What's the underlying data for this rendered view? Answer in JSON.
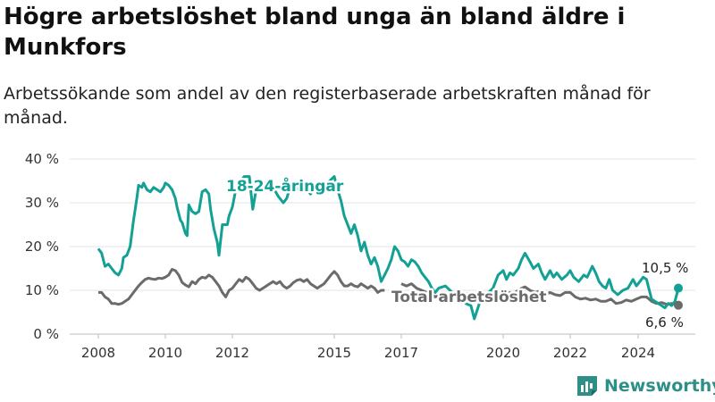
{
  "title": "Högre arbetslöshet bland unga än bland äldre i Munkfors",
  "subtitle": "Arbetssökande som andel av den registerbaserade arbetskraften månad för månad.",
  "brand": {
    "name": "Newsworthy",
    "icon": "newsworthy-logo-icon",
    "color": "#2e8f86"
  },
  "chart_data": {
    "type": "line",
    "title": "Högre arbetslöshet bland unga än bland äldre i Munkfors",
    "subtitle": "Arbetssökande som andel av den registerbaserade arbetskraften månad för månad.",
    "xlabel": "",
    "ylabel": "",
    "xlim": [
      2008,
      2025
    ],
    "ylim": [
      0,
      40
    ],
    "xticks": [
      2008,
      2010,
      2012,
      2015,
      2017,
      2020,
      2022,
      2024
    ],
    "yticks": [
      0,
      10,
      20,
      30,
      40
    ],
    "ytick_labels": [
      "0 %",
      "10 %",
      "20 %",
      "30 %",
      "40 %"
    ],
    "grid": "horizontal",
    "series": [
      {
        "name": "18-24-åringar",
        "color": "#12a194",
        "end_label": "10,5 %",
        "points": [
          [
            2008.0,
            19.5
          ],
          [
            2008.1,
            18.5
          ],
          [
            2008.2,
            15.5
          ],
          [
            2008.3,
            16.0
          ],
          [
            2008.4,
            15.0
          ],
          [
            2008.5,
            14.0
          ],
          [
            2008.6,
            13.5
          ],
          [
            2008.7,
            15.0
          ],
          [
            2008.75,
            17.5
          ],
          [
            2008.85,
            18.0
          ],
          [
            2008.95,
            20.0
          ],
          [
            2009.05,
            26.0
          ],
          [
            2009.15,
            31.0
          ],
          [
            2009.2,
            34.0
          ],
          [
            2009.3,
            33.5
          ],
          [
            2009.35,
            34.5
          ],
          [
            2009.45,
            33.0
          ],
          [
            2009.55,
            32.5
          ],
          [
            2009.65,
            33.5
          ],
          [
            2009.75,
            33.0
          ],
          [
            2009.85,
            32.5
          ],
          [
            2009.95,
            33.5
          ],
          [
            2010.0,
            34.5
          ],
          [
            2010.1,
            34.0
          ],
          [
            2010.2,
            33.0
          ],
          [
            2010.3,
            31.0
          ],
          [
            2010.35,
            29.0
          ],
          [
            2010.45,
            26.0
          ],
          [
            2010.5,
            25.5
          ],
          [
            2010.6,
            23.0
          ],
          [
            2010.65,
            22.5
          ],
          [
            2010.7,
            29.5
          ],
          [
            2010.8,
            28.0
          ],
          [
            2010.9,
            27.5
          ],
          [
            2011.0,
            28.0
          ],
          [
            2011.1,
            32.5
          ],
          [
            2011.2,
            33.0
          ],
          [
            2011.3,
            32.0
          ],
          [
            2011.35,
            28.5
          ],
          [
            2011.45,
            24.0
          ],
          [
            2011.55,
            21.0
          ],
          [
            2011.6,
            18.0
          ],
          [
            2011.7,
            25.0
          ],
          [
            2011.85,
            25.0
          ],
          [
            2011.9,
            27.0
          ],
          [
            2012.0,
            29.0
          ],
          [
            2012.05,
            31.0
          ],
          [
            2012.1,
            33.0
          ],
          [
            2012.2,
            34.5
          ],
          [
            2012.35,
            36.0
          ],
          [
            2012.5,
            36.0
          ],
          [
            2012.6,
            28.5
          ],
          [
            2012.7,
            33.0
          ],
          [
            2012.85,
            34.0
          ],
          [
            2012.95,
            34.5
          ],
          [
            2013.1,
            34.0
          ],
          [
            2013.2,
            33.5
          ],
          [
            2013.35,
            31.5
          ],
          [
            2013.5,
            30.0
          ],
          [
            2013.6,
            31.0
          ],
          [
            2013.7,
            33.5
          ],
          [
            2013.85,
            34.0
          ],
          [
            2013.95,
            33.0
          ],
          [
            2014.05,
            33.5
          ],
          [
            2014.2,
            33.0
          ],
          [
            2014.3,
            32.0
          ],
          [
            2014.45,
            34.0
          ],
          [
            2014.6,
            33.5
          ],
          [
            2014.8,
            34.5
          ],
          [
            2015.0,
            36.0
          ],
          [
            2015.1,
            33.0
          ],
          [
            2015.2,
            30.5
          ],
          [
            2015.3,
            27.0
          ],
          [
            2015.4,
            25.0
          ],
          [
            2015.5,
            23.0
          ],
          [
            2015.6,
            25.0
          ],
          [
            2015.7,
            22.5
          ],
          [
            2015.8,
            19.0
          ],
          [
            2015.9,
            21.0
          ],
          [
            2016.0,
            18.0
          ],
          [
            2016.1,
            16.0
          ],
          [
            2016.2,
            17.5
          ],
          [
            2016.3,
            15.5
          ],
          [
            2016.4,
            12.0
          ],
          [
            2016.5,
            13.5
          ],
          [
            2016.6,
            15.0
          ],
          [
            2016.7,
            17.0
          ],
          [
            2016.8,
            20.0
          ],
          [
            2016.9,
            19.0
          ],
          [
            2017.0,
            17.0
          ],
          [
            2017.1,
            16.5
          ],
          [
            2017.2,
            15.5
          ],
          [
            2017.3,
            17.0
          ],
          [
            2017.4,
            16.5
          ],
          [
            2017.5,
            15.5
          ],
          [
            2017.6,
            14.0
          ],
          [
            2017.7,
            13.0
          ],
          [
            2017.8,
            12.0
          ],
          [
            2017.9,
            10.5
          ],
          [
            2018.0,
            9.5
          ],
          [
            2018.1,
            10.5
          ],
          [
            2018.3,
            11.0
          ],
          [
            2018.5,
            9.5
          ],
          [
            2018.7,
            8.5
          ],
          [
            2018.9,
            7.0
          ],
          [
            2019.05,
            6.5
          ],
          [
            2019.15,
            3.5
          ],
          [
            2019.3,
            7.0
          ],
          [
            2019.5,
            9.0
          ],
          [
            2019.7,
            10.5
          ],
          [
            2019.85,
            13.5
          ],
          [
            2020.0,
            14.5
          ],
          [
            2020.1,
            12.5
          ],
          [
            2020.2,
            14.0
          ],
          [
            2020.3,
            13.5
          ],
          [
            2020.45,
            15.0
          ],
          [
            2020.55,
            17.0
          ],
          [
            2020.65,
            18.5
          ],
          [
            2020.8,
            16.5
          ],
          [
            2020.9,
            15.0
          ],
          [
            2021.05,
            16.0
          ],
          [
            2021.15,
            14.0
          ],
          [
            2021.25,
            12.5
          ],
          [
            2021.4,
            14.5
          ],
          [
            2021.5,
            13.0
          ],
          [
            2021.6,
            14.0
          ],
          [
            2021.75,
            12.5
          ],
          [
            2021.9,
            13.5
          ],
          [
            2022.0,
            14.5
          ],
          [
            2022.1,
            13.0
          ],
          [
            2022.25,
            12.0
          ],
          [
            2022.4,
            13.5
          ],
          [
            2022.5,
            13.0
          ],
          [
            2022.65,
            15.5
          ],
          [
            2022.75,
            14.0
          ],
          [
            2022.85,
            12.0
          ],
          [
            2022.95,
            11.0
          ],
          [
            2023.05,
            10.5
          ],
          [
            2023.15,
            12.5
          ],
          [
            2023.25,
            10.0
          ],
          [
            2023.4,
            9.0
          ],
          [
            2023.55,
            10.0
          ],
          [
            2023.7,
            10.5
          ],
          [
            2023.85,
            12.5
          ],
          [
            2023.95,
            11.0
          ],
          [
            2024.05,
            12.0
          ],
          [
            2024.15,
            13.0
          ],
          [
            2024.25,
            12.5
          ],
          [
            2024.4,
            8.0
          ],
          [
            2024.5,
            7.5
          ],
          [
            2024.6,
            7.0
          ],
          [
            2024.7,
            6.5
          ],
          [
            2024.8,
            6.0
          ],
          [
            2024.9,
            7.0
          ],
          [
            2025.0,
            6.5
          ],
          [
            2025.1,
            7.5
          ],
          [
            2025.2,
            10.5
          ]
        ]
      },
      {
        "name": "Total arbetslöshet",
        "color": "#6b6b6b",
        "end_label": "6,6 %",
        "points": [
          [
            2008.0,
            9.5
          ],
          [
            2008.1,
            9.5
          ],
          [
            2008.2,
            8.5
          ],
          [
            2008.3,
            8.0
          ],
          [
            2008.4,
            7.0
          ],
          [
            2008.5,
            7.0
          ],
          [
            2008.6,
            6.8
          ],
          [
            2008.7,
            7.0
          ],
          [
            2008.8,
            7.5
          ],
          [
            2008.9,
            8.0
          ],
          [
            2009.0,
            9.0
          ],
          [
            2009.1,
            10.0
          ],
          [
            2009.2,
            11.0
          ],
          [
            2009.3,
            11.8
          ],
          [
            2009.4,
            12.5
          ],
          [
            2009.5,
            12.8
          ],
          [
            2009.6,
            12.6
          ],
          [
            2009.7,
            12.5
          ],
          [
            2009.8,
            12.8
          ],
          [
            2009.9,
            12.7
          ],
          [
            2010.0,
            13.0
          ],
          [
            2010.1,
            13.5
          ],
          [
            2010.2,
            14.8
          ],
          [
            2010.3,
            14.5
          ],
          [
            2010.4,
            13.5
          ],
          [
            2010.5,
            11.8
          ],
          [
            2010.6,
            11.2
          ],
          [
            2010.7,
            10.8
          ],
          [
            2010.8,
            12.0
          ],
          [
            2010.9,
            11.5
          ],
          [
            2011.0,
            12.5
          ],
          [
            2011.1,
            13.0
          ],
          [
            2011.2,
            12.8
          ],
          [
            2011.3,
            13.5
          ],
          [
            2011.4,
            13.0
          ],
          [
            2011.5,
            12.0
          ],
          [
            2011.6,
            11.0
          ],
          [
            2011.7,
            9.5
          ],
          [
            2011.8,
            8.5
          ],
          [
            2011.9,
            10.0
          ],
          [
            2012.0,
            10.5
          ],
          [
            2012.1,
            11.5
          ],
          [
            2012.2,
            12.5
          ],
          [
            2012.3,
            12.0
          ],
          [
            2012.4,
            13.0
          ],
          [
            2012.5,
            12.5
          ],
          [
            2012.6,
            11.5
          ],
          [
            2012.7,
            10.5
          ],
          [
            2012.8,
            10.0
          ],
          [
            2012.9,
            10.5
          ],
          [
            2013.0,
            11.0
          ],
          [
            2013.1,
            11.5
          ],
          [
            2013.2,
            12.0
          ],
          [
            2013.3,
            11.5
          ],
          [
            2013.4,
            12.0
          ],
          [
            2013.5,
            11.0
          ],
          [
            2013.6,
            10.5
          ],
          [
            2013.7,
            11.0
          ],
          [
            2013.8,
            11.8
          ],
          [
            2013.9,
            12.3
          ],
          [
            2014.0,
            12.5
          ],
          [
            2014.1,
            12.0
          ],
          [
            2014.2,
            12.5
          ],
          [
            2014.3,
            11.5
          ],
          [
            2014.4,
            11.0
          ],
          [
            2014.5,
            10.5
          ],
          [
            2014.6,
            11.0
          ],
          [
            2014.7,
            11.5
          ],
          [
            2014.8,
            12.5
          ],
          [
            2014.9,
            13.5
          ],
          [
            2015.0,
            14.3
          ],
          [
            2015.1,
            13.5
          ],
          [
            2015.2,
            12.0
          ],
          [
            2015.3,
            11.0
          ],
          [
            2015.4,
            11.0
          ],
          [
            2015.5,
            11.5
          ],
          [
            2015.6,
            11.0
          ],
          [
            2015.7,
            10.8
          ],
          [
            2015.8,
            11.5
          ],
          [
            2015.9,
            11.0
          ],
          [
            2016.0,
            10.5
          ],
          [
            2016.1,
            11.0
          ],
          [
            2016.2,
            10.5
          ],
          [
            2016.3,
            9.5
          ],
          [
            2016.4,
            10.0
          ],
          [
            2016.5,
            10.0
          ]
        ],
        "points_late": [
          [
            2017.0,
            11.5
          ],
          [
            2017.15,
            11.0
          ],
          [
            2017.3,
            11.5
          ],
          [
            2017.45,
            10.5
          ],
          [
            2017.6,
            10.0
          ],
          [
            2017.75,
            9.5
          ],
          [
            2017.9,
            9.0
          ],
          [
            2018.0,
            8.5
          ],
          [
            2018.1,
            8.8
          ],
          [
            2019.8,
            9.5
          ],
          [
            2020.0,
            9.8
          ],
          [
            2020.1,
            9.0
          ],
          [
            2020.2,
            9.5
          ],
          [
            2020.3,
            9.2
          ],
          [
            2020.45,
            10.0
          ],
          [
            2020.55,
            10.5
          ],
          [
            2020.65,
            10.8
          ],
          [
            2020.8,
            10.0
          ],
          [
            2020.95,
            9.5
          ],
          [
            2021.1,
            9.8
          ],
          [
            2021.25,
            9.0
          ],
          [
            2021.4,
            9.5
          ],
          [
            2021.55,
            9.0
          ],
          [
            2021.7,
            8.8
          ],
          [
            2021.85,
            9.5
          ],
          [
            2022.0,
            9.5
          ],
          [
            2022.15,
            8.5
          ],
          [
            2022.3,
            8.0
          ],
          [
            2022.45,
            8.2
          ],
          [
            2022.6,
            7.8
          ],
          [
            2022.75,
            8.0
          ],
          [
            2022.9,
            7.5
          ],
          [
            2023.05,
            7.5
          ],
          [
            2023.2,
            8.0
          ],
          [
            2023.35,
            7.0
          ],
          [
            2023.5,
            7.2
          ],
          [
            2023.65,
            7.8
          ],
          [
            2023.8,
            7.5
          ],
          [
            2023.95,
            8.0
          ],
          [
            2024.1,
            8.5
          ],
          [
            2024.25,
            8.5
          ],
          [
            2024.4,
            7.5
          ],
          [
            2024.55,
            7.0
          ],
          [
            2024.7,
            7.2
          ],
          [
            2024.85,
            6.8
          ],
          [
            2025.0,
            7.0
          ],
          [
            2025.2,
            6.6
          ]
        ]
      }
    ]
  }
}
